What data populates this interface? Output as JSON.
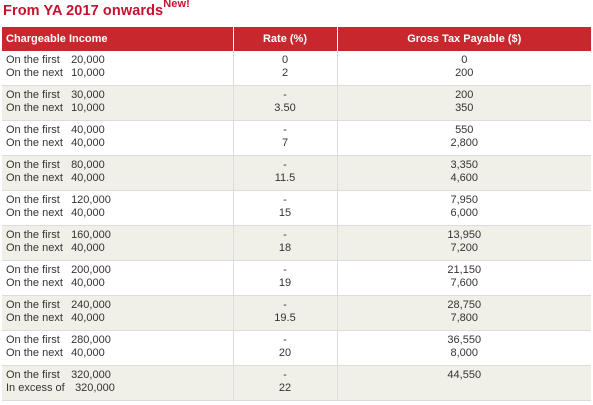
{
  "title": "From YA 2017 onwards",
  "title_badge": "New!",
  "columns": [
    "Chargeable Income",
    "Rate (%)",
    "Gross Tax Payable ($)"
  ],
  "rows": [
    {
      "l1": "On the first",
      "v1": "20,000",
      "l2": "On the next",
      "v2": "10,000",
      "r1": "0",
      "r2": "2",
      "t1": "0",
      "t2": "200"
    },
    {
      "l1": "On the first",
      "v1": "30,000",
      "l2": "On the next",
      "v2": "10,000",
      "r1": "-",
      "r2": "3.50",
      "t1": "200",
      "t2": "350"
    },
    {
      "l1": "On the first",
      "v1": "40,000",
      "l2": "On the next",
      "v2": "40,000",
      "r1": "-",
      "r2": "7",
      "t1": "550",
      "t2": "2,800"
    },
    {
      "l1": "On the first",
      "v1": "80,000",
      "l2": "On the next",
      "v2": "40,000",
      "r1": "-",
      "r2": "11.5",
      "t1": "3,350",
      "t2": "4,600"
    },
    {
      "l1": "On the first",
      "v1": "120,000",
      "l2": "On the next",
      "v2": "40,000",
      "r1": "-",
      "r2": "15",
      "t1": "7,950",
      "t2": "6,000"
    },
    {
      "l1": "On the first",
      "v1": "160,000",
      "l2": "On the next",
      "v2": "40,000",
      "r1": "-",
      "r2": "18",
      "t1": "13,950",
      "t2": "7,200"
    },
    {
      "l1": "On the first",
      "v1": "200,000",
      "l2": "On the next",
      "v2": "40,000",
      "r1": "-",
      "r2": "19",
      "t1": "21,150",
      "t2": "7,600"
    },
    {
      "l1": "On the first",
      "v1": "240,000",
      "l2": "On the next",
      "v2": "40,000",
      "r1": "-",
      "r2": "19.5",
      "t1": "28,750",
      "t2": "7,800"
    },
    {
      "l1": "On the first",
      "v1": "280,000",
      "l2": "On the next",
      "v2": "40,000",
      "r1": "-",
      "r2": "20",
      "t1": "36,550",
      "t2": "8,000"
    },
    {
      "l1": "On the first",
      "v1": "320,000",
      "l2": "In excess of",
      "v2": "320,000",
      "r1": "-",
      "r2": "22",
      "t1": "44,550",
      "t2": ""
    }
  ]
}
